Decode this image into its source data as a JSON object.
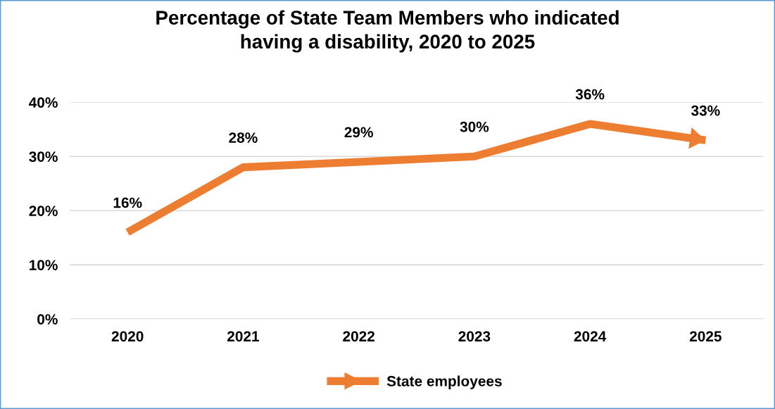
{
  "chart_data": {
    "type": "line",
    "title": "Percentage of State Team Members who indicated\nhaving a disability, 2020 to 2025",
    "categories": [
      "2020",
      "2021",
      "2022",
      "2023",
      "2024",
      "2025"
    ],
    "series": [
      {
        "name": "State employees",
        "color": "#ed7d31",
        "values": [
          16,
          28,
          29,
          30,
          36,
          33
        ]
      }
    ],
    "value_labels": [
      "16%",
      "28%",
      "29%",
      "30%",
      "36%",
      "33%"
    ],
    "ylim": [
      0,
      40
    ],
    "yticks": [
      {
        "value": 0,
        "label": "0%"
      },
      {
        "value": 10,
        "label": "10%"
      },
      {
        "value": 20,
        "label": "20%"
      },
      {
        "value": 30,
        "label": "30%"
      },
      {
        "value": 40,
        "label": "40%"
      }
    ],
    "grid": "y",
    "legend": "bottom",
    "marker": "none",
    "line_style": "solid"
  }
}
